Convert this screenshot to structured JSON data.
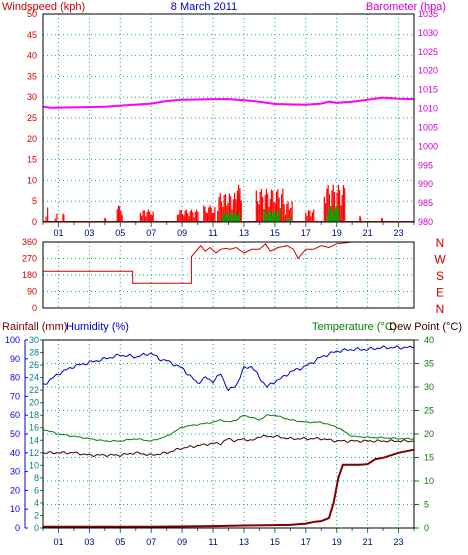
{
  "colors": {
    "wind": "#ff0000",
    "gust": "#00aa00",
    "baro": "#ff00ff",
    "dir": "#cc0000",
    "rain": "#800000",
    "hum": "#0000cc",
    "temp": "#008000",
    "dew": "#400000",
    "grid": "#00aaaa",
    "axis_teal": "#008080",
    "axis_blue": "#0000ff",
    "axis_green": "#008000",
    "axis_red": "#cc0000"
  },
  "chart_data": [
    {
      "type": "bar",
      "title": "8 March 2011",
      "ylabel": "Windspeed (kph)",
      "y2label": "Barometer (hpa)",
      "ylim": [
        0,
        50
      ],
      "y2lim": [
        980,
        1035
      ],
      "yticks": [
        "0",
        "5",
        "10",
        "15",
        "20",
        "25",
        "30",
        "35",
        "40",
        "45",
        "50"
      ],
      "y2ticks": [
        "980",
        "985",
        "990",
        "995",
        "1000",
        "1005",
        "1010",
        "1015",
        "1020",
        "1025",
        "1030",
        "1035"
      ],
      "xlim": [
        0,
        24
      ],
      "xticks": [
        "01",
        "03",
        "05",
        "07",
        "09",
        "11",
        "13",
        "15",
        "17",
        "19",
        "21",
        "23"
      ],
      "grid": true,
      "barometer": {
        "x": [
          0,
          0.5,
          2,
          4,
          5.5,
          7,
          8,
          9,
          10,
          11,
          12,
          13,
          14,
          15,
          16,
          17,
          18,
          18.5,
          19,
          20,
          21,
          22,
          23,
          24
        ],
        "y": [
          1010.5,
          1010.2,
          1010.3,
          1010.5,
          1010.9,
          1011.3,
          1012.0,
          1012.3,
          1012.4,
          1012.5,
          1012.5,
          1012.2,
          1011.8,
          1011.2,
          1011.1,
          1011.0,
          1011.3,
          1011.8,
          1011.5,
          1011.8,
          1012.3,
          1012.9,
          1012.6,
          1012.5
        ]
      },
      "wind_bursts": [
        {
          "x": 0.2,
          "w": 0.2,
          "max": 3.5
        },
        {
          "x": 0.8,
          "w": 0.2,
          "max": 2
        },
        {
          "x": 1.3,
          "w": 0.1,
          "max": 2
        },
        {
          "x": 4.0,
          "w": 0.1,
          "max": 1.5
        },
        {
          "x": 4.8,
          "w": 0.4,
          "max": 4
        },
        {
          "x": 6.3,
          "w": 0.6,
          "max": 3
        },
        {
          "x": 6.9,
          "w": 0.3,
          "max": 3.5
        },
        {
          "x": 8.7,
          "w": 1.4,
          "max": 3
        },
        {
          "x": 10.4,
          "w": 0.8,
          "max": 4
        },
        {
          "x": 11.3,
          "w": 1.6,
          "max": 7
        },
        {
          "x": 12.5,
          "w": 0.4,
          "max": 9
        },
        {
          "x": 13.8,
          "w": 1.8,
          "max": 8
        },
        {
          "x": 15.6,
          "w": 0.6,
          "max": 5
        },
        {
          "x": 17.0,
          "w": 0.6,
          "max": 3
        },
        {
          "x": 18.2,
          "w": 1.4,
          "max": 9
        },
        {
          "x": 20.5,
          "w": 0.1,
          "max": 1.5
        },
        {
          "x": 21.9,
          "w": 0.1,
          "max": 1
        }
      ],
      "gust_bursts": [
        {
          "x": 11.6,
          "w": 1.2,
          "max": 2.5
        },
        {
          "x": 14.3,
          "w": 1.1,
          "max": 3
        },
        {
          "x": 15.8,
          "w": 0.3,
          "max": 1.5
        },
        {
          "x": 18.4,
          "w": 0.8,
          "max": 4
        }
      ]
    },
    {
      "type": "line",
      "ylabels_right": [
        "N",
        "W",
        "S",
        "E",
        "N"
      ],
      "ylim": [
        0,
        360
      ],
      "yticks": [
        "0",
        "90",
        "180",
        "270",
        "360"
      ],
      "xlim": [
        0,
        24
      ],
      "grid": true,
      "direction": {
        "x": [
          0,
          5.8,
          5.8,
          9.6,
          9.6,
          10.2,
          10.5,
          10.8,
          11.2,
          11.5,
          11.8,
          12.1,
          12.5,
          13.0,
          13.5,
          14.0,
          14.4,
          14.7,
          15.2,
          15.5,
          15.8,
          16.2,
          16.5,
          17.0,
          17.5,
          18.0,
          18.5,
          19.0,
          20.0,
          24.0
        ],
        "y": [
          200,
          200,
          135,
          135,
          280,
          340,
          310,
          330,
          300,
          320,
          325,
          320,
          330,
          300,
          320,
          320,
          350,
          310,
          330,
          335,
          340,
          320,
          270,
          320,
          320,
          340,
          330,
          350,
          360,
          360
        ]
      }
    },
    {
      "type": "line",
      "title_left": "Rainfall (mm)",
      "title_left2": "Humidity (%)",
      "title_right": "Temperature (°C)",
      "title_right2": "Dew Point (°C)",
      "xlim": [
        0,
        24
      ],
      "xticks": [
        "01",
        "03",
        "05",
        "07",
        "09",
        "11",
        "13",
        "15",
        "17",
        "19",
        "21",
        "23"
      ],
      "hum_ticks": [
        "0",
        "10",
        "20",
        "30",
        "40",
        "50",
        "60",
        "70",
        "80",
        "90",
        "100"
      ],
      "rain_ticks": [
        "0",
        "2",
        "4",
        "6",
        "8",
        "10",
        "12",
        "14",
        "16",
        "18",
        "20",
        "22",
        "24",
        "26",
        "28",
        "30"
      ],
      "temp_ticks": [
        "0",
        "5",
        "10",
        "15",
        "20",
        "25",
        "30",
        "35",
        "40"
      ],
      "grid": true,
      "humidity": {
        "x": [
          0,
          1,
          2,
          3,
          4,
          5,
          6,
          7,
          7.5,
          8,
          9,
          10,
          10.5,
          11,
          11.5,
          12,
          12.5,
          13,
          13.5,
          14,
          14.5,
          15,
          15.5,
          16,
          17,
          18,
          19,
          20,
          21,
          22,
          23,
          24
        ],
        "y": [
          76,
          82,
          86,
          88,
          90,
          92,
          91,
          93,
          90,
          89,
          85,
          77,
          80,
          78,
          82,
          73,
          76,
          85,
          86,
          80,
          75,
          78,
          80,
          83,
          86,
          91,
          94,
          95,
          95,
          96,
          96,
          96
        ]
      },
      "temperature": {
        "x": [
          0,
          1,
          2,
          3,
          4,
          5,
          6,
          7,
          8,
          9,
          10,
          11,
          11.5,
          12,
          12.5,
          13,
          13.5,
          14,
          14.5,
          15,
          16,
          17,
          18,
          19,
          19.5,
          20,
          21,
          22,
          23,
          24
        ],
        "y": [
          21,
          20,
          19.5,
          19,
          18.5,
          18.5,
          19,
          18.5,
          19.5,
          21.5,
          22,
          22.5,
          23,
          22.5,
          23,
          24,
          23.5,
          23,
          24,
          24,
          23,
          22.5,
          22.5,
          21.5,
          20.5,
          19.5,
          19.3,
          19.2,
          19,
          19
        ]
      },
      "dewpoint": {
        "x": [
          0,
          1,
          2,
          3,
          4,
          5,
          6,
          7,
          8,
          9,
          10,
          11,
          11.5,
          12,
          12.5,
          13,
          13.5,
          14,
          15,
          16,
          17,
          18,
          19,
          20,
          21,
          22,
          23,
          24
        ],
        "y": [
          16,
          16,
          16,
          15.5,
          15.5,
          15.5,
          16,
          15.5,
          16,
          17,
          17.5,
          18,
          18,
          19,
          18.5,
          19,
          18.5,
          19.5,
          19.5,
          19,
          19,
          19,
          18.5,
          18.5,
          18.5,
          18.5,
          18.5,
          18.5
        ]
      },
      "rainfall": {
        "x": [
          0,
          7,
          11,
          13,
          16,
          17,
          17.6,
          18,
          18.5,
          18.8,
          19.1,
          19.4,
          20.5,
          21,
          21.5,
          22,
          23,
          24
        ],
        "y": [
          0.2,
          0.2,
          0.3,
          0.4,
          0.5,
          0.7,
          1.0,
          1.1,
          1.6,
          4,
          8,
          10.1,
          10.1,
          10.2,
          11,
          11.2,
          12,
          12.5
        ]
      }
    }
  ]
}
